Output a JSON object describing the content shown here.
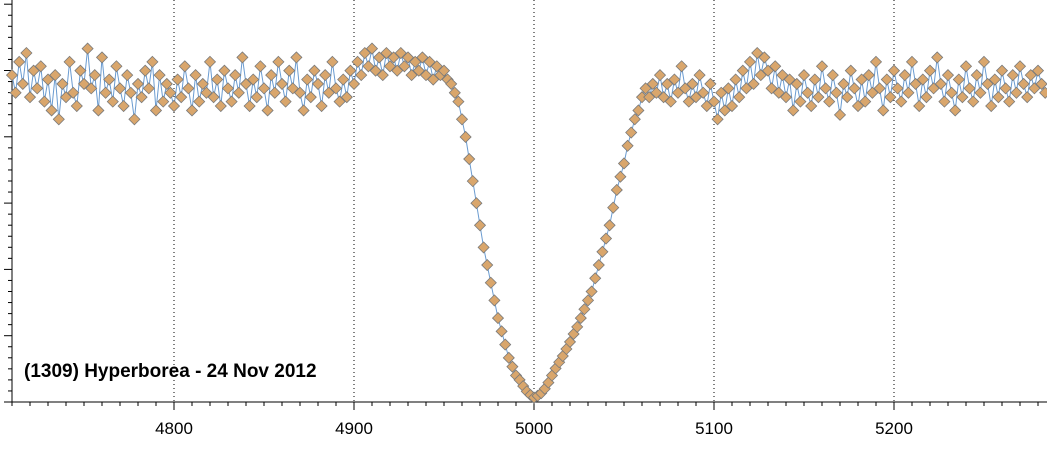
{
  "chart_data": {
    "type": "scatter",
    "title": "(1309) Hyperborea - 24 Nov 2012",
    "xlabel": "",
    "ylabel": "",
    "xlim": [
      4710,
      5285
    ],
    "ylim": [
      -0.34,
      0.115
    ],
    "grid": "vertical dotted lines at major x ticks",
    "x_ticks": [
      4800,
      4900,
      5000,
      5100,
      5200
    ],
    "x_tick_labels": [
      "4800",
      "4900",
      "5000",
      "5100",
      "5200"
    ],
    "marker": "diamond",
    "colors": {
      "line": "#6a9bd0",
      "marker_fill": "#d9a66c",
      "marker_edge": "#7a7a7a"
    },
    "series": [
      {
        "points": [
          [
            4710,
            0.03
          ],
          [
            4712,
            0.01
          ],
          [
            4714,
            0.045
          ],
          [
            4716,
            0.02
          ],
          [
            4718,
            0.055
          ],
          [
            4720,
            0.005
          ],
          [
            4722,
            0.035
          ],
          [
            4724,
            0.015
          ],
          [
            4726,
            0.04
          ],
          [
            4728,
            0.0
          ],
          [
            4730,
            0.025
          ],
          [
            4732,
            -0.01
          ],
          [
            4734,
            0.03
          ],
          [
            4736,
            -0.02
          ],
          [
            4738,
            0.02
          ],
          [
            4740,
            0.005
          ],
          [
            4742,
            0.045
          ],
          [
            4744,
            0.01
          ],
          [
            4746,
            -0.005
          ],
          [
            4748,
            0.035
          ],
          [
            4750,
            0.02
          ],
          [
            4752,
            0.06
          ],
          [
            4754,
            0.015
          ],
          [
            4756,
            0.03
          ],
          [
            4758,
            -0.01
          ],
          [
            4760,
            0.05
          ],
          [
            4762,
            0.01
          ],
          [
            4764,
            0.025
          ],
          [
            4766,
            0.0
          ],
          [
            4768,
            0.04
          ],
          [
            4770,
            0.015
          ],
          [
            4772,
            -0.005
          ],
          [
            4774,
            0.03
          ],
          [
            4776,
            0.01
          ],
          [
            4778,
            -0.02
          ],
          [
            4780,
            0.02
          ],
          [
            4782,
            0.005
          ],
          [
            4784,
            0.035
          ],
          [
            4786,
            0.015
          ],
          [
            4788,
            0.045
          ],
          [
            4790,
            -0.01
          ],
          [
            4792,
            0.03
          ],
          [
            4794,
            0.0
          ],
          [
            4796,
            0.02
          ],
          [
            4798,
            0.01
          ],
          [
            4800,
            -0.005
          ],
          [
            4802,
            0.025
          ],
          [
            4804,
            0.005
          ],
          [
            4806,
            0.04
          ],
          [
            4808,
            0.015
          ],
          [
            4810,
            -0.01
          ],
          [
            4812,
            0.03
          ],
          [
            4814,
            0.0
          ],
          [
            4816,
            0.02
          ],
          [
            4818,
            0.01
          ],
          [
            4820,
            0.045
          ],
          [
            4822,
            0.005
          ],
          [
            4824,
            0.025
          ],
          [
            4826,
            -0.005
          ],
          [
            4828,
            0.035
          ],
          [
            4830,
            0.015
          ],
          [
            4832,
            0.0
          ],
          [
            4834,
            0.03
          ],
          [
            4836,
            0.01
          ],
          [
            4838,
            0.05
          ],
          [
            4840,
            0.02
          ],
          [
            4842,
            -0.005
          ],
          [
            4844,
            0.025
          ],
          [
            4846,
            0.005
          ],
          [
            4848,
            0.04
          ],
          [
            4850,
            0.015
          ],
          [
            4852,
            -0.01
          ],
          [
            4854,
            0.03
          ],
          [
            4856,
            0.01
          ],
          [
            4858,
            0.045
          ],
          [
            4860,
            0.02
          ],
          [
            4862,
            0.0
          ],
          [
            4864,
            0.035
          ],
          [
            4866,
            0.015
          ],
          [
            4868,
            0.05
          ],
          [
            4870,
            0.01
          ],
          [
            4872,
            -0.01
          ],
          [
            4874,
            0.025
          ],
          [
            4876,
            0.005
          ],
          [
            4878,
            0.035
          ],
          [
            4880,
            0.02
          ],
          [
            4882,
            -0.005
          ],
          [
            4884,
            0.03
          ],
          [
            4886,
            0.01
          ],
          [
            4888,
            0.045
          ],
          [
            4890,
            0.015
          ],
          [
            4892,
            0.0
          ],
          [
            4894,
            0.025
          ],
          [
            4896,
            0.005
          ],
          [
            4898,
            0.035
          ],
          [
            4900,
            0.02
          ],
          [
            4902,
            0.045
          ],
          [
            4904,
            0.03
          ],
          [
            4906,
            0.055
          ],
          [
            4908,
            0.04
          ],
          [
            4910,
            0.06
          ],
          [
            4912,
            0.035
          ],
          [
            4914,
            0.05
          ],
          [
            4916,
            0.03
          ],
          [
            4918,
            0.055
          ],
          [
            4920,
            0.04
          ],
          [
            4922,
            0.05
          ],
          [
            4924,
            0.035
          ],
          [
            4926,
            0.055
          ],
          [
            4928,
            0.04
          ],
          [
            4930,
            0.05
          ],
          [
            4932,
            0.03
          ],
          [
            4934,
            0.045
          ],
          [
            4936,
            0.035
          ],
          [
            4938,
            0.05
          ],
          [
            4940,
            0.03
          ],
          [
            4942,
            0.045
          ],
          [
            4944,
            0.025
          ],
          [
            4946,
            0.04
          ],
          [
            4948,
            0.03
          ],
          [
            4950,
            0.035
          ],
          [
            4952,
            0.025
          ],
          [
            4954,
            0.02
          ],
          [
            4956,
            0.01
          ],
          [
            4958,
            0.0
          ],
          [
            4960,
            -0.02
          ],
          [
            4962,
            -0.04
          ],
          [
            4964,
            -0.065
          ],
          [
            4966,
            -0.09
          ],
          [
            4968,
            -0.115
          ],
          [
            4970,
            -0.14
          ],
          [
            4972,
            -0.165
          ],
          [
            4974,
            -0.185
          ],
          [
            4976,
            -0.205
          ],
          [
            4978,
            -0.225
          ],
          [
            4980,
            -0.245
          ],
          [
            4982,
            -0.26
          ],
          [
            4984,
            -0.275
          ],
          [
            4986,
            -0.29
          ],
          [
            4988,
            -0.3
          ],
          [
            4990,
            -0.31
          ],
          [
            4992,
            -0.315
          ],
          [
            4994,
            -0.322
          ],
          [
            4996,
            -0.328
          ],
          [
            4998,
            -0.332
          ],
          [
            5000,
            -0.335
          ],
          [
            5002,
            -0.333
          ],
          [
            5004,
            -0.33
          ],
          [
            5006,
            -0.325
          ],
          [
            5008,
            -0.318
          ],
          [
            5010,
            -0.31
          ],
          [
            5012,
            -0.302
          ],
          [
            5014,
            -0.295
          ],
          [
            5016,
            -0.288
          ],
          [
            5018,
            -0.28
          ],
          [
            5020,
            -0.272
          ],
          [
            5022,
            -0.263
          ],
          [
            5024,
            -0.255
          ],
          [
            5026,
            -0.245
          ],
          [
            5028,
            -0.235
          ],
          [
            5030,
            -0.225
          ],
          [
            5032,
            -0.215
          ],
          [
            5034,
            -0.2
          ],
          [
            5036,
            -0.185
          ],
          [
            5038,
            -0.17
          ],
          [
            5040,
            -0.155
          ],
          [
            5042,
            -0.14
          ],
          [
            5044,
            -0.12
          ],
          [
            5046,
            -0.1
          ],
          [
            5048,
            -0.085
          ],
          [
            5050,
            -0.07
          ],
          [
            5052,
            -0.05
          ],
          [
            5054,
            -0.035
          ],
          [
            5056,
            -0.02
          ],
          [
            5058,
            -0.01
          ],
          [
            5060,
            0.005
          ],
          [
            5062,
            0.015
          ],
          [
            5064,
            0.005
          ],
          [
            5066,
            0.02
          ],
          [
            5068,
            0.01
          ],
          [
            5070,
            0.03
          ],
          [
            5072,
            0.005
          ],
          [
            5074,
            0.02
          ],
          [
            5076,
            0.0
          ],
          [
            5078,
            0.025
          ],
          [
            5080,
            0.01
          ],
          [
            5082,
            0.04
          ],
          [
            5084,
            0.015
          ],
          [
            5086,
            0.0
          ],
          [
            5088,
            0.02
          ],
          [
            5090,
            0.005
          ],
          [
            5092,
            0.03
          ],
          [
            5094,
            0.01
          ],
          [
            5096,
            -0.005
          ],
          [
            5098,
            0.02
          ],
          [
            5100,
            0.0
          ],
          [
            5102,
            -0.02
          ],
          [
            5104,
            0.01
          ],
          [
            5106,
            -0.01
          ],
          [
            5108,
            0.015
          ],
          [
            5110,
            -0.005
          ],
          [
            5112,
            0.025
          ],
          [
            5114,
            0.005
          ],
          [
            5116,
            0.035
          ],
          [
            5118,
            0.015
          ],
          [
            5120,
            0.045
          ],
          [
            5122,
            0.02
          ],
          [
            5124,
            0.055
          ],
          [
            5126,
            0.03
          ],
          [
            5128,
            0.05
          ],
          [
            5130,
            0.035
          ],
          [
            5132,
            0.015
          ],
          [
            5134,
            0.04
          ],
          [
            5136,
            0.01
          ],
          [
            5138,
            0.03
          ],
          [
            5140,
            0.005
          ],
          [
            5142,
            0.025
          ],
          [
            5144,
            -0.01
          ],
          [
            5146,
            0.02
          ],
          [
            5148,
            0.0
          ],
          [
            5150,
            0.03
          ],
          [
            5152,
            0.01
          ],
          [
            5154,
            -0.005
          ],
          [
            5156,
            0.025
          ],
          [
            5158,
            0.005
          ],
          [
            5160,
            0.04
          ],
          [
            5162,
            0.015
          ],
          [
            5164,
            0.0
          ],
          [
            5166,
            0.03
          ],
          [
            5168,
            0.01
          ],
          [
            5170,
            -0.015
          ],
          [
            5172,
            0.02
          ],
          [
            5174,
            0.005
          ],
          [
            5176,
            0.035
          ],
          [
            5178,
            0.015
          ],
          [
            5180,
            -0.005
          ],
          [
            5182,
            0.025
          ],
          [
            5184,
            0.0
          ],
          [
            5186,
            0.03
          ],
          [
            5188,
            0.01
          ],
          [
            5190,
            0.045
          ],
          [
            5192,
            0.015
          ],
          [
            5194,
            -0.01
          ],
          [
            5196,
            0.025
          ],
          [
            5198,
            0.005
          ],
          [
            5200,
            0.035
          ],
          [
            5202,
            0.015
          ],
          [
            5204,
            0.0
          ],
          [
            5206,
            0.03
          ],
          [
            5208,
            0.01
          ],
          [
            5210,
            0.045
          ],
          [
            5212,
            0.02
          ],
          [
            5214,
            -0.005
          ],
          [
            5216,
            0.025
          ],
          [
            5218,
            0.005
          ],
          [
            5220,
            0.035
          ],
          [
            5222,
            0.015
          ],
          [
            5224,
            0.05
          ],
          [
            5226,
            0.02
          ],
          [
            5228,
            0.0
          ],
          [
            5230,
            0.03
          ],
          [
            5232,
            0.01
          ],
          [
            5234,
            -0.01
          ],
          [
            5236,
            0.025
          ],
          [
            5238,
            0.005
          ],
          [
            5240,
            0.04
          ],
          [
            5242,
            0.015
          ],
          [
            5244,
            0.0
          ],
          [
            5246,
            0.03
          ],
          [
            5248,
            0.01
          ],
          [
            5250,
            0.045
          ],
          [
            5252,
            0.02
          ],
          [
            5254,
            -0.005
          ],
          [
            5256,
            0.025
          ],
          [
            5258,
            0.005
          ],
          [
            5260,
            0.035
          ],
          [
            5262,
            0.015
          ],
          [
            5264,
            0.0
          ],
          [
            5266,
            0.03
          ],
          [
            5268,
            0.01
          ],
          [
            5270,
            0.04
          ],
          [
            5272,
            0.02
          ],
          [
            5274,
            0.005
          ],
          [
            5276,
            0.03
          ],
          [
            5278,
            0.015
          ],
          [
            5280,
            0.035
          ],
          [
            5282,
            0.02
          ],
          [
            5284,
            0.01
          ]
        ]
      }
    ]
  }
}
